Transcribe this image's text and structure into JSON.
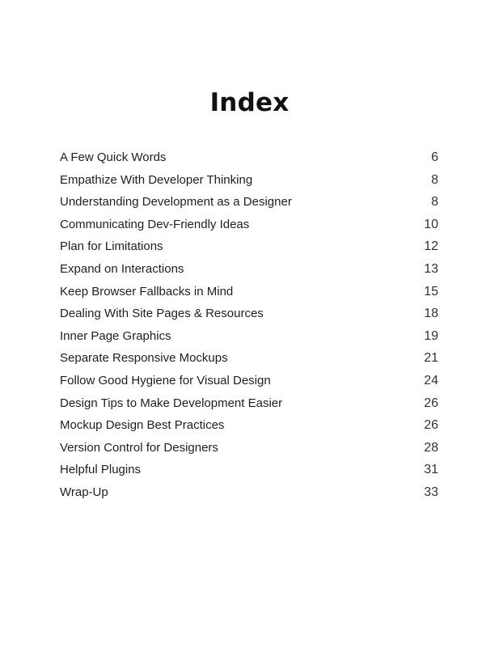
{
  "document": {
    "title": "Index",
    "entries": [
      {
        "title": "A Few Quick Words",
        "page": "6"
      },
      {
        "title": "Empathize With Developer Thinking",
        "page": "8"
      },
      {
        "title": "Understanding Development as a Designer",
        "page": "8"
      },
      {
        "title": "Communicating Dev-Friendly Ideas",
        "page": "10"
      },
      {
        "title": "Plan for Limitations",
        "page": "12"
      },
      {
        "title": "Expand on Interactions",
        "page": "13"
      },
      {
        "title": "Keep Browser Fallbacks in Mind",
        "page": "15"
      },
      {
        "title": "Dealing With Site Pages & Resources",
        "page": "18"
      },
      {
        "title": "Inner Page Graphics",
        "page": "19"
      },
      {
        "title": "Separate Responsive Mockups",
        "page": "21"
      },
      {
        "title": "Follow Good Hygiene for Visual Design",
        "page": "24"
      },
      {
        "title": "Design Tips to Make Development Easier",
        "page": "26"
      },
      {
        "title": "Mockup Design Best Practices",
        "page": "26"
      },
      {
        "title": "Version Control for Designers",
        "page": "28"
      },
      {
        "title": "Helpful Plugins",
        "page": "31"
      },
      {
        "title": "Wrap-Up",
        "page": "33"
      }
    ]
  }
}
